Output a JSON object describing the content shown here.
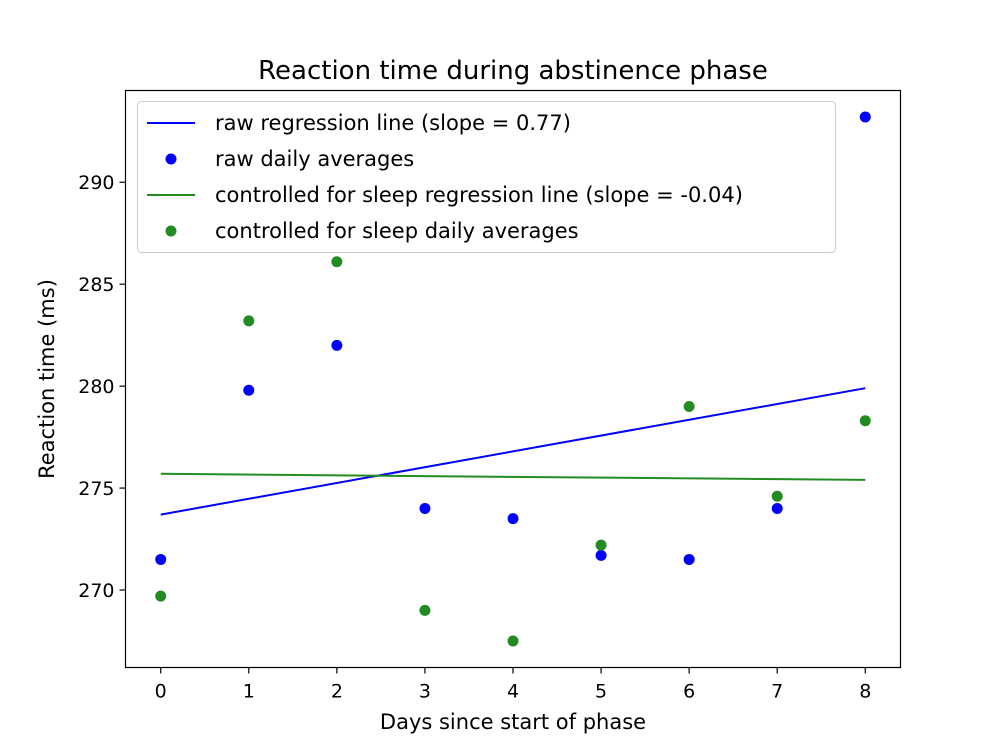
{
  "chart_data": {
    "type": "scatter",
    "title": "Reaction time during abstinence phase",
    "xlabel": "Days since start of phase",
    "ylabel": "Reaction time (ms)",
    "xlim": [
      -0.4,
      8.4
    ],
    "ylim": [
      266.2,
      294.5
    ],
    "xticks": [
      0,
      1,
      2,
      3,
      4,
      5,
      6,
      7,
      8
    ],
    "yticks": [
      270,
      275,
      280,
      285,
      290
    ],
    "grid": false,
    "legend_position": "top-left",
    "series": [
      {
        "name": "raw regression line (slope = 0.77)",
        "kind": "line",
        "color": "#0000ff",
        "x": [
          0,
          8
        ],
        "y": [
          273.7,
          279.9
        ]
      },
      {
        "name": "raw daily averages",
        "kind": "scatter",
        "color": "#0000ff",
        "x": [
          0,
          1,
          2,
          3,
          4,
          5,
          6,
          7,
          8
        ],
        "y": [
          271.5,
          279.8,
          282.0,
          274.0,
          273.5,
          271.7,
          271.5,
          274.0,
          293.2
        ]
      },
      {
        "name": "controlled for sleep regression line (slope = -0.04)",
        "kind": "line",
        "color": "#228b22",
        "x": [
          0,
          8
        ],
        "y": [
          275.7,
          275.4
        ]
      },
      {
        "name": "controlled for sleep daily averages",
        "kind": "scatter",
        "color": "#228b22",
        "x": [
          0,
          1,
          2,
          3,
          4,
          5,
          6,
          7,
          8
        ],
        "y": [
          269.7,
          283.2,
          286.1,
          269.0,
          267.5,
          272.2,
          279.0,
          274.6,
          278.3
        ]
      }
    ]
  }
}
